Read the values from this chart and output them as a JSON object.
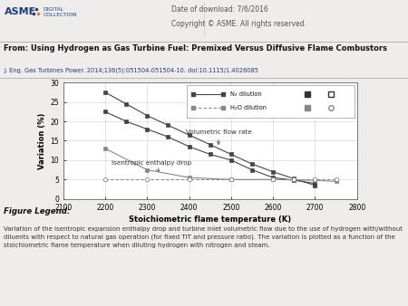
{
  "title_from": "From: Using Hydrogen as Gas Turbine Fuel: Premixed Versus Diffusive Flame Combustors",
  "subtitle": "J. Eng. Gas Turbines Power. 2014;136(5):051504-051504-10. doi:10.1115/1.4026085",
  "header_date": "Date of download: 7/6/2016",
  "header_copy": "Copyright © ASME. All rights reserved.",
  "xlabel": "Stoichiometric flame temperature (K)",
  "ylabel": "Variation (%)",
  "xlim": [
    2100,
    2800
  ],
  "ylim": [
    0,
    30
  ],
  "xticks": [
    2100,
    2200,
    2300,
    2400,
    2500,
    2600,
    2700,
    2800
  ],
  "yticks": [
    0,
    5,
    10,
    15,
    20,
    25,
    30
  ],
  "N2_vol_x": [
    2200,
    2250,
    2300,
    2350,
    2400,
    2450,
    2500,
    2550,
    2600,
    2650,
    2700
  ],
  "N2_vol_y": [
    27.5,
    24.5,
    21.5,
    19.0,
    16.5,
    14.0,
    11.5,
    9.0,
    7.0,
    5.2,
    3.5
  ],
  "H2O_vol_x": [
    2200,
    2250,
    2300,
    2350,
    2400,
    2450,
    2500,
    2550,
    2600,
    2650,
    2700
  ],
  "H2O_vol_y": [
    22.5,
    20.0,
    18.0,
    16.0,
    13.5,
    11.5,
    10.0,
    7.5,
    5.5,
    4.8,
    4.0
  ],
  "N2_isen_x": [
    2200,
    2300,
    2400,
    2500,
    2600,
    2700,
    2750
  ],
  "N2_isen_y": [
    13.0,
    7.5,
    5.5,
    5.0,
    5.0,
    4.8,
    4.5
  ],
  "H2O_isen_x": [
    2200,
    2300,
    2400,
    2500,
    2600,
    2650,
    2700,
    2750
  ],
  "H2O_isen_y": [
    5.0,
    5.0,
    5.0,
    5.0,
    5.0,
    5.0,
    5.0,
    5.0
  ],
  "bg_color": "#efedeb",
  "plot_bg": "#ffffff",
  "legend_N2": "N₂ dilution",
  "legend_H2O": "H₂O dilution",
  "figure_legend_title": "Figure Legend:",
  "figure_legend_text": "Variation of the isentropic expansion enthalpy drop and turbine inlet volumetric flow due to the use of hydrogen with/without\ndiluents with respect to natural gas operation (for fixed TIT and pressure ratio). The variation is plotted as a function of the\nstoichiometric flame temperature when diluting hydrogen with nitrogen and steam."
}
